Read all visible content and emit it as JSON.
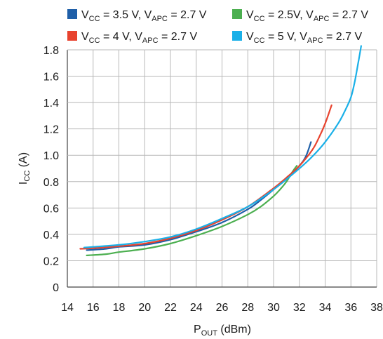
{
  "chart_data": {
    "type": "line",
    "xlabel": {
      "main": "P",
      "sub": "OUT",
      "unit": " (dBm)"
    },
    "ylabel": {
      "main": "I",
      "sub": "CC",
      "unit": " (A)"
    },
    "xlim": [
      14,
      38
    ],
    "ylim": [
      0,
      1.8
    ],
    "xticks": [
      "14",
      "16",
      "18",
      "20",
      "22",
      "24",
      "26",
      "28",
      "30",
      "32",
      "34",
      "36",
      "38"
    ],
    "yticks": [
      "0",
      "0.2",
      "0.4",
      "0.6",
      "0.8",
      "1.0",
      "1.2",
      "1.4",
      "1.6",
      "1.8"
    ],
    "grid": true,
    "legend_position": "top",
    "series": [
      {
        "label": {
          "v": "V",
          "vsub": "CC",
          "vval": " = 3.5 V, ",
          "a": "V",
          "asub": "APC",
          "aval": " = 2.7 V"
        },
        "color": "#1f5fa8",
        "points": [
          [
            15.5,
            0.28
          ],
          [
            17,
            0.29
          ],
          [
            18,
            0.305
          ],
          [
            20,
            0.32
          ],
          [
            22,
            0.36
          ],
          [
            24,
            0.42
          ],
          [
            26,
            0.49
          ],
          [
            28,
            0.59
          ],
          [
            29,
            0.66
          ],
          [
            30,
            0.74
          ],
          [
            31,
            0.82
          ],
          [
            32,
            0.92
          ],
          [
            32.5,
            0.99
          ],
          [
            32.9,
            1.1
          ]
        ]
      },
      {
        "label": {
          "v": "V",
          "vsub": "CC",
          "vval": " = 2.5V, ",
          "a": "V",
          "asub": "APC",
          "aval": " = 2.7 V"
        },
        "color": "#4caf50",
        "points": [
          [
            15.5,
            0.24
          ],
          [
            17,
            0.25
          ],
          [
            18,
            0.265
          ],
          [
            20,
            0.29
          ],
          [
            22,
            0.33
          ],
          [
            24,
            0.39
          ],
          [
            26,
            0.46
          ],
          [
            28,
            0.55
          ],
          [
            29,
            0.61
          ],
          [
            30,
            0.69
          ],
          [
            30.5,
            0.74
          ],
          [
            31,
            0.8
          ],
          [
            31.5,
            0.88
          ],
          [
            31.8,
            0.92
          ]
        ]
      },
      {
        "label": {
          "v": "V",
          "vsub": "CC",
          "vval": " = 4 V, ",
          "a": "V",
          "asub": "APC",
          "aval": " = 2.7 V"
        },
        "color": "#e8432e",
        "points": [
          [
            15,
            0.29
          ],
          [
            16,
            0.295
          ],
          [
            18,
            0.31
          ],
          [
            20,
            0.33
          ],
          [
            22,
            0.37
          ],
          [
            24,
            0.43
          ],
          [
            26,
            0.51
          ],
          [
            28,
            0.61
          ],
          [
            30,
            0.75
          ],
          [
            31,
            0.83
          ],
          [
            32,
            0.92
          ],
          [
            33,
            1.04
          ],
          [
            33.5,
            1.13
          ],
          [
            34,
            1.24
          ],
          [
            34.5,
            1.38
          ]
        ]
      },
      {
        "label": {
          "v": "V",
          "vsub": "CC",
          "vval": " = 5 V, ",
          "a": "V",
          "asub": "APC",
          "aval": " = 2.7 V"
        },
        "color": "#1ab0e8",
        "points": [
          [
            15.3,
            0.3
          ],
          [
            16,
            0.305
          ],
          [
            18,
            0.32
          ],
          [
            20,
            0.345
          ],
          [
            22,
            0.38
          ],
          [
            24,
            0.44
          ],
          [
            26,
            0.52
          ],
          [
            28,
            0.61
          ],
          [
            30,
            0.74
          ],
          [
            32,
            0.9
          ],
          [
            33,
            0.99
          ],
          [
            34,
            1.1
          ],
          [
            35,
            1.24
          ],
          [
            35.5,
            1.33
          ],
          [
            36,
            1.44
          ],
          [
            36.3,
            1.56
          ],
          [
            36.6,
            1.72
          ],
          [
            36.8,
            1.83
          ]
        ]
      }
    ]
  }
}
